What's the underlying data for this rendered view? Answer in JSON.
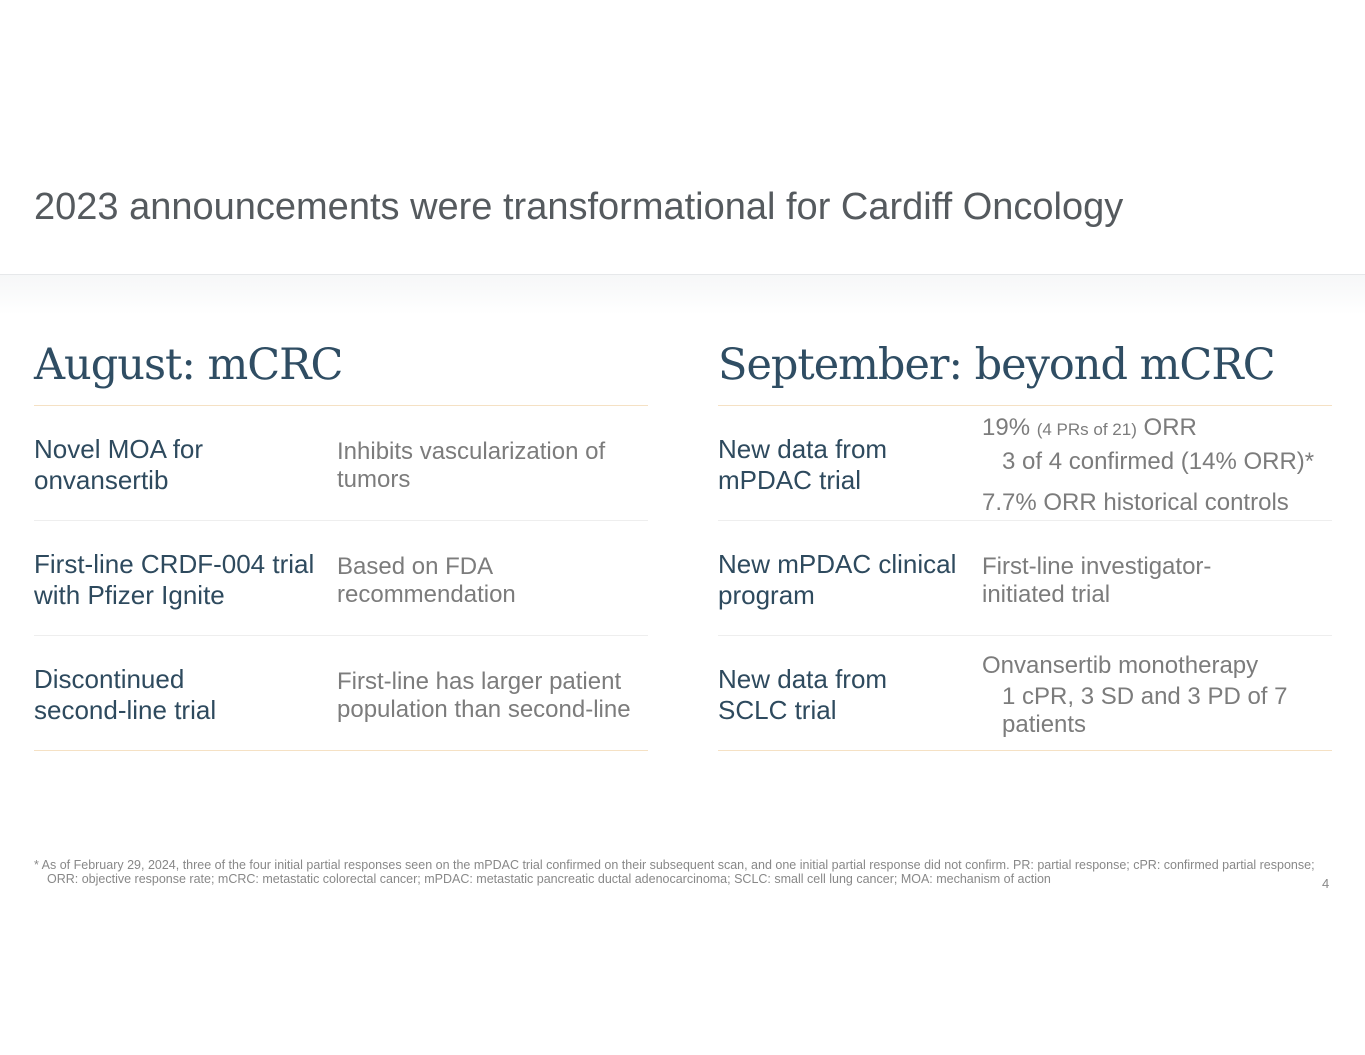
{
  "title": "2023 announcements were transformational for Cardiff Oncology",
  "left": {
    "heading": "August: mCRC",
    "rows": [
      {
        "label": "Novel MOA for onvansertib",
        "desc": "Inhibits vascularization of tumors"
      },
      {
        "label": "First-line CRDF-004 trial with Pfizer Ignite",
        "desc": "Based on FDA recommendation"
      },
      {
        "label": "Discontinued second-line trial",
        "desc": "First-line has larger patient population than second-line"
      }
    ]
  },
  "right": {
    "heading": "September: beyond mCRC",
    "rows": [
      {
        "label": "New data from mPDAC trial",
        "d1a": "19%",
        "d1b": "(4 PRs of 21)",
        "d1c": "ORR",
        "d2": "3 of 4 confirmed (14% ORR)*",
        "d3": "7.7% ORR historical controls"
      },
      {
        "label": "New mPDAC clinical program",
        "desc": "First-line investigator-initiated trial"
      },
      {
        "label": "New data from SCLC trial",
        "d1": "Onvansertib monotherapy",
        "d2": "1 cPR, 3 SD and 3 PD of 7 patients"
      }
    ]
  },
  "footnote": "*  As of February 29, 2024, three of the four initial partial responses seen on the mPDAC trial confirmed on their subsequent scan, and one initial partial response did not confirm. PR: partial response; cPR: confirmed partial response; ORR: objective response rate; mCRC: metastatic colorectal cancer; mPDAC: metastatic pancreatic ductal adenocarcinoma; SCLC: small cell lung cancer; MOA: mechanism of action",
  "page_number": "4",
  "colors": {
    "heading": "#2f4d63",
    "label": "#2e4a5e",
    "desc": "#7c7c7c",
    "accent_line": "#f5e1c4"
  }
}
